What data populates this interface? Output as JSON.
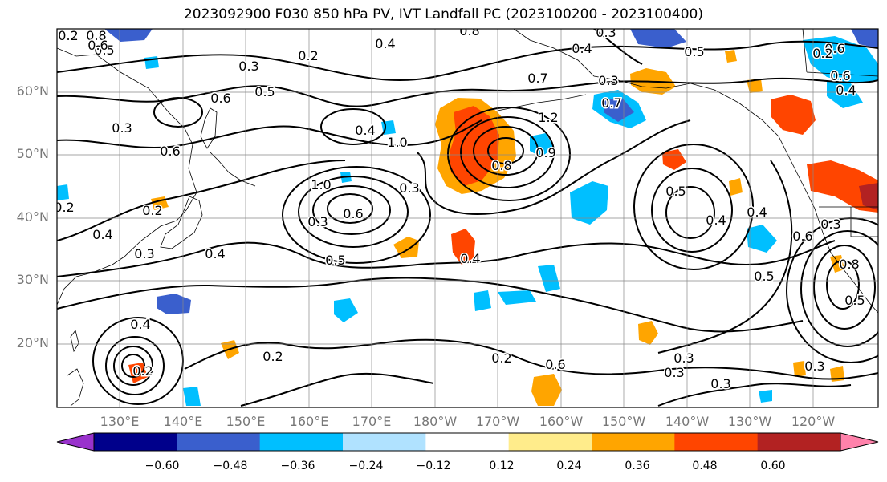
{
  "title": "2023092900 F030 850 hPa PV, IVT Landfall PC (2023100200 - 2023100400)",
  "lat_labels": [
    "60°N",
    "50°N",
    "40°N",
    "30°N",
    "20°N"
  ],
  "lon_labels": [
    "130°E",
    "140°E",
    "150°E",
    "160°E",
    "170°E",
    "180°W",
    "170°W",
    "160°W",
    "150°W",
    "140°W",
    "130°W",
    "120°W"
  ],
  "colorbar": {
    "colors": [
      "#9932cc",
      "#00008b",
      "#3a5fcd",
      "#00bfff",
      "#b0e2ff",
      "#ffffff",
      "#ffec8b",
      "#ffa500",
      "#ff4500",
      "#b22222",
      "#ff82ab"
    ],
    "tick_labels": [
      "−0.60",
      "−0.48",
      "−0.36",
      "−0.24",
      "−0.12",
      "0.12",
      "0.24",
      "0.36",
      "0.48",
      "0.60"
    ]
  },
  "contour_labels": [
    "0.8",
    "0.5",
    "0.6",
    "0.3",
    "0.2",
    "0.4",
    "0.8",
    "0.3",
    "0.4",
    "0.5",
    "0.6",
    "0.6",
    "0.5",
    "0.3",
    "0.6",
    "0.4",
    "1.0",
    "1.2",
    "0.7",
    "0.3",
    "0.7",
    "0.3",
    "1.0",
    "0.8",
    "0.6",
    "0.3",
    "0.9",
    "0.4",
    "0.2",
    "0.4",
    "0.2",
    "0.4",
    "0.3",
    "0.5",
    "0.4",
    "0.4",
    "0.5",
    "0.5",
    "0.8",
    "0.3",
    "0.3",
    "0.4",
    "0.2",
    "0.2",
    "0.6",
    "0.2",
    "0.3",
    "0.3",
    "0.2",
    "0.2",
    "0.6",
    "0.4",
    "0.3",
    "0.6",
    "0.5"
  ]
}
